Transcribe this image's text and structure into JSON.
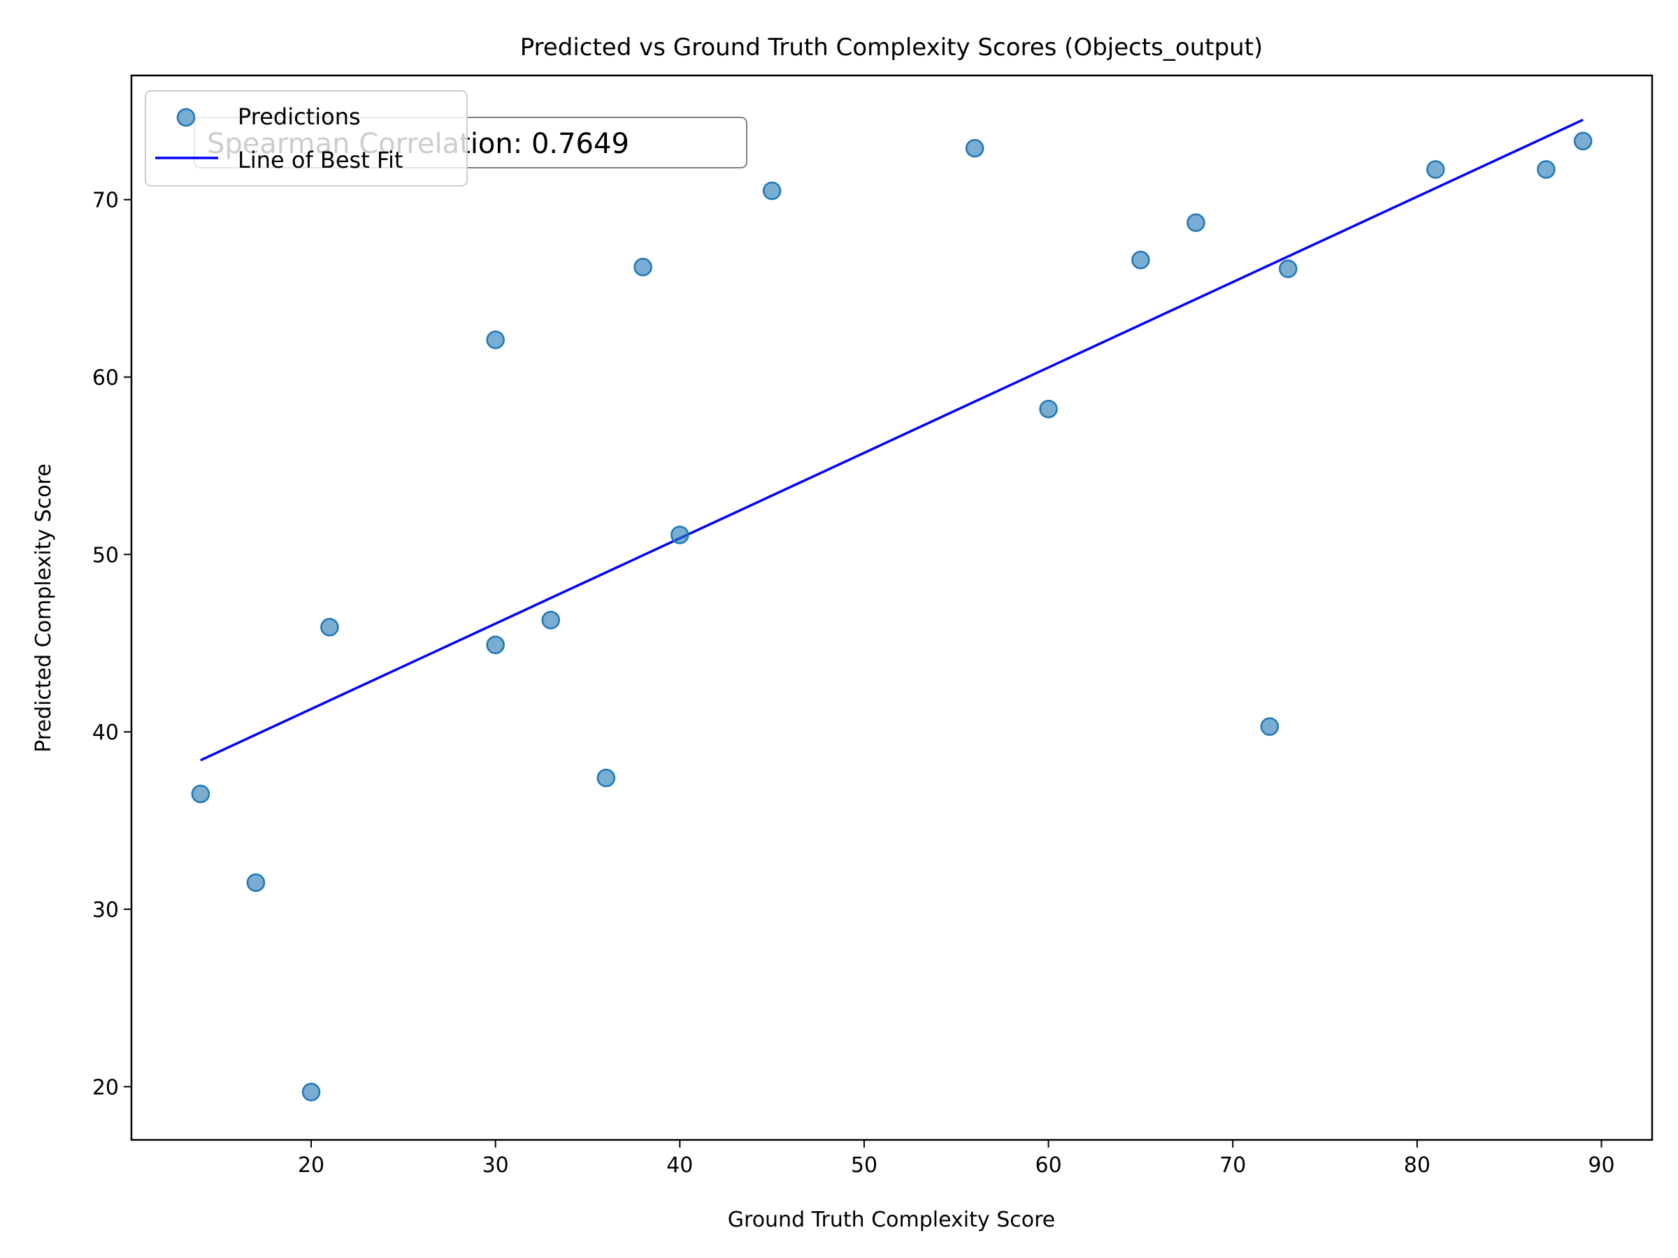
{
  "chart_data": {
    "type": "scatter",
    "title": "Predicted vs Ground Truth Complexity Scores (Objects_output)",
    "xlabel": "Ground Truth Complexity Score",
    "ylabel": "Predicted Complexity Score",
    "xlim": [
      10.25,
      92.75
    ],
    "ylim": [
      17,
      77
    ],
    "xticks": [
      20,
      30,
      40,
      50,
      60,
      70,
      80,
      90
    ],
    "yticks": [
      20,
      30,
      40,
      50,
      60,
      70
    ],
    "grid": false,
    "legend_position": "top-left",
    "annotation": "Spearman Correlation: 0.7649",
    "series": [
      {
        "name": "Predictions",
        "kind": "scatter",
        "color": "#1f77b4",
        "points": [
          [
            14,
            36.5
          ],
          [
            17,
            31.5
          ],
          [
            20,
            19.7
          ],
          [
            21,
            45.9
          ],
          [
            30,
            62.1
          ],
          [
            30,
            44.9
          ],
          [
            33,
            46.3
          ],
          [
            36,
            37.4
          ],
          [
            38,
            66.2
          ],
          [
            40,
            51.1
          ],
          [
            45,
            70.5
          ],
          [
            56,
            72.9
          ],
          [
            60,
            58.2
          ],
          [
            65,
            66.6
          ],
          [
            68,
            68.7
          ],
          [
            72,
            40.3
          ],
          [
            73,
            66.1
          ],
          [
            81,
            71.7
          ],
          [
            87,
            71.7
          ],
          [
            89,
            73.3
          ]
        ]
      },
      {
        "name": "Line of Best Fit",
        "kind": "line",
        "color": "#0000ff",
        "points": [
          [
            14,
            38.4
          ],
          [
            89,
            74.5
          ]
        ]
      }
    ]
  }
}
